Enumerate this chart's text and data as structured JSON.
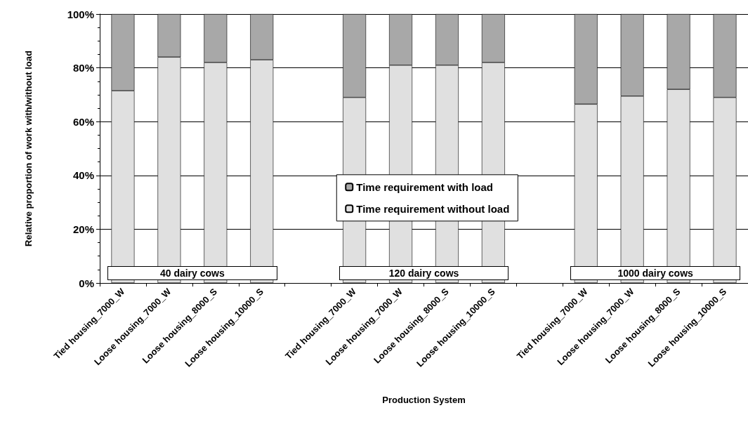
{
  "chart_data": {
    "type": "bar",
    "stacked": true,
    "xlabel": "Production System",
    "ylabel": "Relative proportion of work with/without load",
    "categories": [
      "Tied housing_7000_W",
      "Loose housing_7000_W",
      "Loose housing_8000_S",
      "Loose housing_10000_S",
      null,
      "Tied housing_7000_W",
      "Loose housing_7000_W",
      "Loose housing_8000_S",
      "Loose housing_10000_S",
      null,
      "Tied housing_7000_W",
      "Loose housing_7000_W",
      "Loose housing_8000_S",
      "Loose housing_10000_S"
    ],
    "series": [
      {
        "name": "Time requirement without load",
        "color": "#e0e0e0",
        "values": [
          71.5,
          84,
          82,
          83,
          null,
          69,
          81,
          81,
          82,
          null,
          66.5,
          69.5,
          72,
          69
        ]
      },
      {
        "name": "Time requirement with load",
        "color": "#a8a8a8",
        "values": [
          28.5,
          16,
          18,
          17,
          null,
          31,
          19,
          19,
          18,
          null,
          33.5,
          30.5,
          28,
          31
        ]
      }
    ],
    "ylim": [
      0,
      100
    ],
    "yticks": [
      {
        "value": 0,
        "label": "0%"
      },
      {
        "value": 20,
        "label": "20%"
      },
      {
        "value": 40,
        "label": "40%"
      },
      {
        "value": 60,
        "label": "60%"
      },
      {
        "value": 80,
        "label": "80%"
      },
      {
        "value": 100,
        "label": "100%"
      }
    ],
    "grid": "y",
    "legend": "center",
    "annotations": [
      "40 dairy cows",
      "120 dairy cows",
      "1000 dairy cows"
    ]
  }
}
